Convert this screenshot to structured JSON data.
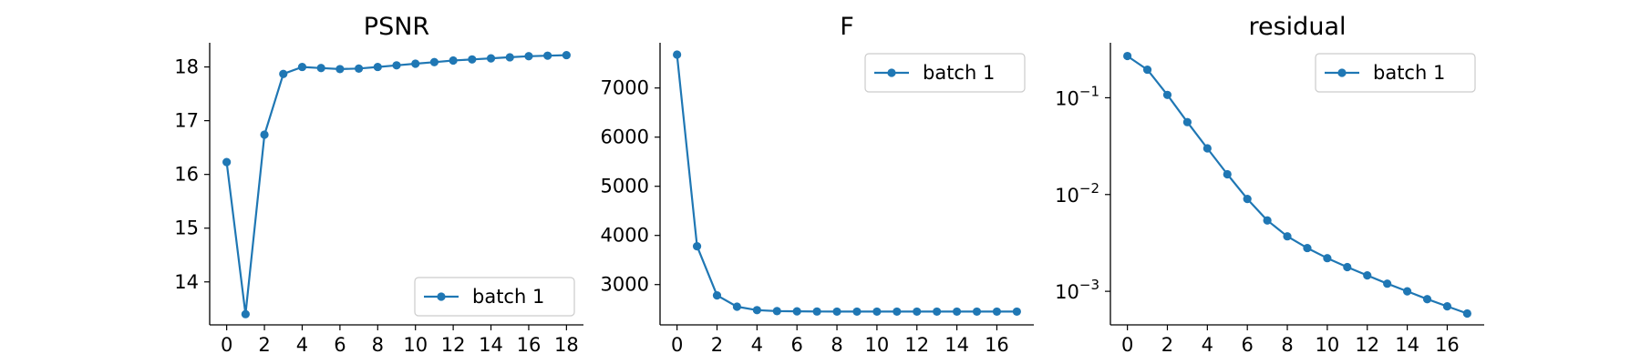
{
  "colors": {
    "series": "#1f77b4",
    "axis": "#000000",
    "legend_border": "#cccccc"
  },
  "chart_data": [
    {
      "type": "line",
      "title": "PSNR",
      "xlabel": "",
      "ylabel": "",
      "yscale": "linear",
      "grid": false,
      "legend_position": "lower-right",
      "xlim": [
        -0.9,
        18.9
      ],
      "ylim": [
        13.2,
        18.45
      ],
      "xticks": [
        0,
        2,
        4,
        6,
        8,
        10,
        12,
        14,
        16,
        18
      ],
      "xtick_labels": [
        "0",
        "2",
        "4",
        "6",
        "8",
        "10",
        "12",
        "14",
        "16",
        "18"
      ],
      "yticks": [
        14,
        15,
        16,
        17,
        18
      ],
      "ytick_labels": [
        "14",
        "15",
        "16",
        "17",
        "18"
      ],
      "series": [
        {
          "name": "batch 1",
          "x": [
            0,
            1,
            2,
            3,
            4,
            5,
            6,
            7,
            8,
            9,
            10,
            11,
            12,
            13,
            14,
            15,
            16,
            17,
            18
          ],
          "y": [
            16.23,
            13.4,
            16.74,
            17.87,
            18.0,
            17.98,
            17.96,
            17.97,
            18.0,
            18.03,
            18.06,
            18.09,
            18.12,
            18.14,
            18.16,
            18.18,
            18.2,
            18.21,
            18.22
          ]
        }
      ]
    },
    {
      "type": "line",
      "title": "F",
      "xlabel": "",
      "ylabel": "",
      "yscale": "linear",
      "grid": false,
      "legend_position": "upper-right",
      "xlim": [
        -0.85,
        17.85
      ],
      "ylim": [
        2180,
        7920
      ],
      "xticks": [
        0,
        2,
        4,
        6,
        8,
        10,
        12,
        14,
        16
      ],
      "xtick_labels": [
        "0",
        "2",
        "4",
        "6",
        "8",
        "10",
        "12",
        "14",
        "16"
      ],
      "yticks": [
        3000,
        4000,
        5000,
        6000,
        7000
      ],
      "ytick_labels": [
        "3000",
        "4000",
        "5000",
        "6000",
        "7000"
      ],
      "series": [
        {
          "name": "batch 1",
          "x": [
            0,
            1,
            2,
            3,
            4,
            5,
            6,
            7,
            8,
            9,
            10,
            11,
            12,
            13,
            14,
            15,
            16,
            17
          ],
          "y": [
            7680,
            3780,
            2780,
            2550,
            2480,
            2460,
            2455,
            2452,
            2450,
            2450,
            2450,
            2450,
            2450,
            2450,
            2450,
            2450,
            2450,
            2450
          ]
        }
      ]
    },
    {
      "type": "line",
      "title": "residual",
      "xlabel": "",
      "ylabel": "",
      "yscale": "log",
      "grid": false,
      "legend_position": "upper-right",
      "xlim": [
        -0.85,
        17.85
      ],
      "ylim": [
        0.00045,
        0.37
      ],
      "xticks": [
        0,
        2,
        4,
        6,
        8,
        10,
        12,
        14,
        16
      ],
      "xtick_labels": [
        "0",
        "2",
        "4",
        "6",
        "8",
        "10",
        "12",
        "14",
        "16"
      ],
      "yticks": [
        0.001,
        0.01,
        0.1
      ],
      "ytick_labels": [
        {
          "base": "10",
          "exp": "−3"
        },
        {
          "base": "10",
          "exp": "−2"
        },
        {
          "base": "10",
          "exp": "−1"
        }
      ],
      "series": [
        {
          "name": "batch 1",
          "x": [
            0,
            1,
            2,
            3,
            4,
            5,
            6,
            7,
            8,
            9,
            10,
            11,
            12,
            13,
            14,
            15,
            16,
            17
          ],
          "y": [
            0.27,
            0.195,
            0.107,
            0.056,
            0.03,
            0.0162,
            0.009,
            0.0054,
            0.0037,
            0.0028,
            0.0022,
            0.00178,
            0.00146,
            0.0012,
            0.001,
            0.00083,
            0.0007,
            0.00059
          ]
        }
      ]
    }
  ]
}
